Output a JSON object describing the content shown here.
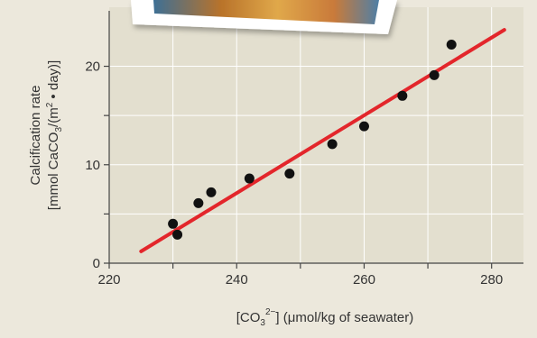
{
  "chart_data": {
    "type": "scatter",
    "title": "",
    "xlabel": {
      "prefix": "[CO",
      "sub": "3",
      "sup": "2−",
      "suffix": "] (μmol/kg of seawater)"
    },
    "ylabel": {
      "line1": "Calcification rate",
      "line2_prefix": "[mmol CaCO",
      "line2_sub": "3",
      "line2_mid": "/(m",
      "line2_sup": "2",
      "line2_suffix": " • day)]"
    },
    "xlim": [
      220,
      285
    ],
    "ylim": [
      0,
      26
    ],
    "x_ticks": [
      220,
      240,
      260,
      280
    ],
    "x_minor_ticks": [
      230,
      250,
      270
    ],
    "y_ticks": [
      0,
      10,
      20
    ],
    "y_minor_ticks": [
      5,
      15
    ],
    "points": [
      {
        "x": 230,
        "y": 4.0
      },
      {
        "x": 230.7,
        "y": 2.9
      },
      {
        "x": 234,
        "y": 6.1
      },
      {
        "x": 236,
        "y": 7.2
      },
      {
        "x": 242,
        "y": 8.6
      },
      {
        "x": 248.3,
        "y": 9.1
      },
      {
        "x": 255,
        "y": 12.1
      },
      {
        "x": 260,
        "y": 13.9
      },
      {
        "x": 266,
        "y": 17.0
      },
      {
        "x": 271,
        "y": 19.1
      },
      {
        "x": 273.7,
        "y": 22.2
      }
    ],
    "fit_line": {
      "x": [
        225,
        282
      ],
      "y": [
        1.2,
        23.7
      ]
    },
    "grid": true,
    "colors": {
      "points": "#111111",
      "fit_line": "#e3262b",
      "plot_bg": "#e3dfcf",
      "outer_bg": "#ece8dc",
      "grid": "#ffffff",
      "axis": "#444444"
    }
  }
}
